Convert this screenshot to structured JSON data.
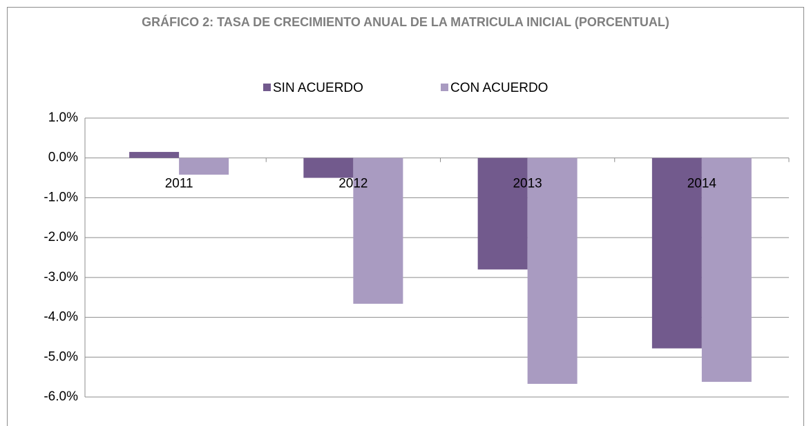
{
  "chart_data": {
    "type": "bar",
    "title": "GRÁFICO 2: TASA DE CRECIMIENTO ANUAL DE LA MATRICULA INICIAL (PORCENTUAL)",
    "categories": [
      "2011",
      "2012",
      "2013",
      "2014"
    ],
    "series": [
      {
        "name": "SIN ACUERDO",
        "color": "#725a8d",
        "values": [
          0.15,
          -0.5,
          -2.8,
          -4.78
        ]
      },
      {
        "name": "CON ACUERDO",
        "color": "#a99bc1",
        "values": [
          -0.42,
          -3.66,
          -5.67,
          -5.62
        ]
      }
    ],
    "ylim": [
      -6,
      1
    ],
    "yticks": [
      {
        "value": 1,
        "label": "1.0%"
      },
      {
        "value": 0,
        "label": "0.0%"
      },
      {
        "value": -1,
        "label": "-1.0%"
      },
      {
        "value": -2,
        "label": "-2.0%"
      },
      {
        "value": -3,
        "label": "-3.0%"
      },
      {
        "value": -4,
        "label": "-4.0%"
      },
      {
        "value": -5,
        "label": "-5.0%"
      },
      {
        "value": -6,
        "label": "-6.0%"
      }
    ],
    "grid": true,
    "legend": "top"
  }
}
